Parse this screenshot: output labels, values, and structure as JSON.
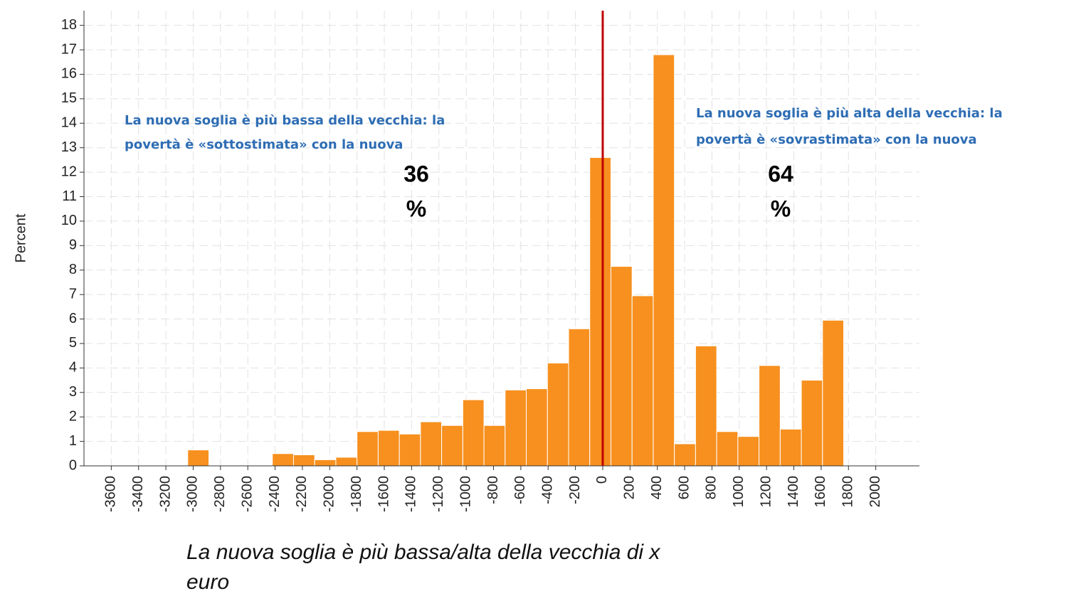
{
  "chart_data": {
    "type": "histogram",
    "bins": [
      -3040,
      -2885,
      -2730,
      -2575,
      -2420,
      -2265,
      -2110,
      -1955,
      -1800,
      -1645,
      -1490,
      -1335,
      -1180,
      -1025,
      -870,
      -715,
      -560,
      -405,
      -250,
      -95,
      60,
      215,
      370,
      525,
      680,
      835,
      990,
      1145,
      1300,
      1455,
      1610,
      1765
    ],
    "counts": [
      0.65,
      0,
      0,
      0,
      0.5,
      0.45,
      0.25,
      0.35,
      1.4,
      1.45,
      1.3,
      1.8,
      1.65,
      2.7,
      1.65,
      3.1,
      3.15,
      4.2,
      5.6,
      12.6,
      8.15,
      6.95,
      16.8,
      0.9,
      4.9,
      1.4,
      1.2,
      4.1,
      1.5,
      3.5,
      5.95
    ],
    "color": "#f7901e",
    "xlim": [
      -3800,
      2320
    ],
    "ylim": [
      0,
      18.6
    ],
    "xticks": [
      -3600,
      -3400,
      -3200,
      -3000,
      -2800,
      -2600,
      -2400,
      -2200,
      -2000,
      -1800,
      -1600,
      -1400,
      -1200,
      -1000,
      -800,
      -600,
      -400,
      -200,
      0,
      200,
      400,
      600,
      800,
      1000,
      1200,
      1400,
      1600,
      1800,
      2000
    ],
    "yticks": [
      0,
      1,
      2,
      3,
      4,
      5,
      6,
      7,
      8,
      9,
      10,
      11,
      12,
      13,
      14,
      15,
      16,
      17,
      18
    ],
    "grid": true,
    "ylabel": "Percent",
    "xlabel": [
      "La nuova soglia è più bassa/alta della vecchia di x",
      "euro"
    ],
    "reference_line": {
      "x": 0,
      "color": "#c00000"
    },
    "annotations": [
      {
        "lines": [
          "La nuova soglia è più bassa della vecchia: la",
          "povertà è «sottostimata» con la nuova"
        ],
        "color": "#2e6db4"
      },
      {
        "lines": [
          "La nuova soglia è più alta della vecchia: la",
          "povertà è «sovrastimata» con la nuova"
        ],
        "color": "#2e6db4"
      },
      {
        "lines": [
          "36",
          "%"
        ],
        "color": "#000000"
      },
      {
        "lines": [
          "64",
          "%"
        ],
        "color": "#000000"
      }
    ]
  }
}
